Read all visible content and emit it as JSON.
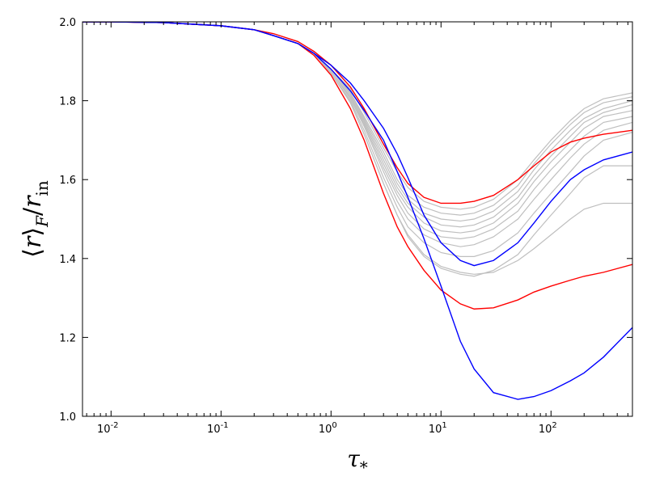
{
  "chart_data": {
    "type": "line",
    "title": "",
    "xlabel": "τ",
    "xlabel_sub": "*",
    "ylabel_parts": {
      "open": "⟨",
      "var": "r",
      "close": "⟩",
      "sub": "F",
      "slash": "/",
      "den": "r",
      "den_sub": "in"
    },
    "xscale": "log",
    "xlim": [
      0.0055,
      550
    ],
    "ylim": [
      1.0,
      2.0
    ],
    "grid": false,
    "legend": "none",
    "x_ticks": [
      {
        "value": 0.01,
        "base": "10",
        "exp": "-2"
      },
      {
        "value": 0.1,
        "base": "10",
        "exp": "-1"
      },
      {
        "value": 1,
        "base": "10",
        "exp": "0"
      },
      {
        "value": 10,
        "base": "10",
        "exp": "1"
      },
      {
        "value": 100,
        "base": "10",
        "exp": "2"
      }
    ],
    "y_ticks": [
      {
        "value": 1.0,
        "label": "1.0"
      },
      {
        "value": 1.2,
        "label": "1.2"
      },
      {
        "value": 1.4,
        "label": "1.4"
      },
      {
        "value": 1.6,
        "label": "1.6"
      },
      {
        "value": 1.8,
        "label": "1.8"
      },
      {
        "value": 2.0,
        "label": "2.0"
      }
    ],
    "colors": {
      "gray": "#bfbfbf",
      "red": "#ff0000",
      "blue": "#0000ff"
    },
    "x": [
      0.0055,
      0.01,
      0.03,
      0.1,
      0.2,
      0.3,
      0.5,
      0.7,
      1.0,
      1.5,
      2.0,
      3.0,
      4.0,
      5.0,
      7.0,
      10,
      15,
      20,
      30,
      50,
      70,
      100,
      150,
      200,
      300,
      550
    ],
    "series": [
      {
        "color_key": "gray",
        "values": [
          2.0,
          2.0,
          1.998,
          1.99,
          1.98,
          1.965,
          1.945,
          1.92,
          1.88,
          1.83,
          1.77,
          1.68,
          1.62,
          1.58,
          1.545,
          1.53,
          1.525,
          1.53,
          1.55,
          1.6,
          1.65,
          1.7,
          1.75,
          1.78,
          1.805,
          1.82
        ]
      },
      {
        "color_key": "gray",
        "values": [
          2.0,
          2.0,
          1.998,
          1.99,
          1.98,
          1.965,
          1.945,
          1.92,
          1.88,
          1.82,
          1.76,
          1.67,
          1.6,
          1.56,
          1.53,
          1.515,
          1.51,
          1.515,
          1.535,
          1.585,
          1.64,
          1.69,
          1.74,
          1.77,
          1.795,
          1.81
        ]
      },
      {
        "color_key": "gray",
        "values": [
          2.0,
          2.0,
          1.998,
          1.99,
          1.98,
          1.965,
          1.945,
          1.92,
          1.88,
          1.82,
          1.755,
          1.66,
          1.59,
          1.55,
          1.515,
          1.5,
          1.495,
          1.5,
          1.52,
          1.57,
          1.625,
          1.675,
          1.725,
          1.755,
          1.78,
          1.8
        ]
      },
      {
        "color_key": "gray",
        "values": [
          2.0,
          2.0,
          1.998,
          1.99,
          1.98,
          1.965,
          1.945,
          1.92,
          1.88,
          1.815,
          1.75,
          1.65,
          1.58,
          1.54,
          1.505,
          1.485,
          1.48,
          1.485,
          1.505,
          1.555,
          1.61,
          1.66,
          1.71,
          1.745,
          1.77,
          1.79
        ]
      },
      {
        "color_key": "gray",
        "values": [
          2.0,
          2.0,
          1.998,
          1.99,
          1.98,
          1.965,
          1.945,
          1.92,
          1.875,
          1.81,
          1.745,
          1.64,
          1.57,
          1.53,
          1.49,
          1.47,
          1.465,
          1.47,
          1.49,
          1.54,
          1.595,
          1.645,
          1.695,
          1.73,
          1.76,
          1.775
        ]
      },
      {
        "color_key": "gray",
        "values": [
          2.0,
          2.0,
          1.998,
          1.99,
          1.98,
          1.965,
          1.945,
          1.92,
          1.875,
          1.81,
          1.74,
          1.63,
          1.56,
          1.515,
          1.475,
          1.455,
          1.45,
          1.455,
          1.475,
          1.52,
          1.575,
          1.625,
          1.675,
          1.71,
          1.745,
          1.76
        ]
      },
      {
        "color_key": "gray",
        "values": [
          2.0,
          2.0,
          1.998,
          1.99,
          1.98,
          1.965,
          1.945,
          1.92,
          1.875,
          1.805,
          1.735,
          1.62,
          1.545,
          1.5,
          1.46,
          1.44,
          1.43,
          1.435,
          1.455,
          1.5,
          1.55,
          1.6,
          1.655,
          1.69,
          1.725,
          1.745
        ]
      },
      {
        "color_key": "gray",
        "values": [
          2.0,
          2.0,
          1.998,
          1.99,
          1.98,
          1.965,
          1.945,
          1.92,
          1.87,
          1.8,
          1.725,
          1.605,
          1.53,
          1.48,
          1.44,
          1.415,
          1.405,
          1.405,
          1.42,
          1.465,
          1.515,
          1.565,
          1.62,
          1.66,
          1.7,
          1.72
        ]
      },
      {
        "color_key": "gray",
        "values": [
          2.0,
          2.0,
          1.998,
          1.99,
          1.98,
          1.965,
          1.945,
          1.92,
          1.87,
          1.795,
          1.715,
          1.59,
          1.51,
          1.455,
          1.405,
          1.375,
          1.36,
          1.355,
          1.37,
          1.41,
          1.46,
          1.51,
          1.565,
          1.605,
          1.635,
          1.635
        ]
      },
      {
        "color_key": "gray",
        "values": [
          2.0,
          2.0,
          1.998,
          1.99,
          1.98,
          1.965,
          1.945,
          1.92,
          1.87,
          1.795,
          1.715,
          1.59,
          1.51,
          1.46,
          1.41,
          1.38,
          1.365,
          1.36,
          1.365,
          1.395,
          1.425,
          1.46,
          1.5,
          1.525,
          1.54,
          1.54
        ]
      },
      {
        "color_key": "red",
        "values": [
          2.0,
          2.0,
          1.998,
          1.99,
          1.98,
          1.97,
          1.95,
          1.925,
          1.89,
          1.835,
          1.78,
          1.69,
          1.63,
          1.59,
          1.555,
          1.54,
          1.54,
          1.545,
          1.56,
          1.6,
          1.635,
          1.67,
          1.695,
          1.705,
          1.715,
          1.725
        ]
      },
      {
        "color_key": "red",
        "values": [
          2.0,
          2.0,
          1.998,
          1.99,
          1.98,
          1.965,
          1.945,
          1.915,
          1.865,
          1.78,
          1.7,
          1.565,
          1.48,
          1.43,
          1.37,
          1.32,
          1.285,
          1.272,
          1.275,
          1.295,
          1.315,
          1.33,
          1.345,
          1.355,
          1.365,
          1.385
        ]
      },
      {
        "color_key": "blue",
        "values": [
          2.0,
          2.0,
          1.998,
          1.99,
          1.98,
          1.965,
          1.945,
          1.92,
          1.89,
          1.845,
          1.8,
          1.73,
          1.665,
          1.605,
          1.51,
          1.44,
          1.395,
          1.382,
          1.395,
          1.44,
          1.49,
          1.545,
          1.6,
          1.625,
          1.65,
          1.67
        ]
      },
      {
        "color_key": "blue",
        "values": [
          2.0,
          2.0,
          1.998,
          1.99,
          1.98,
          1.965,
          1.945,
          1.92,
          1.88,
          1.825,
          1.775,
          1.7,
          1.62,
          1.555,
          1.45,
          1.33,
          1.19,
          1.12,
          1.06,
          1.043,
          1.05,
          1.065,
          1.09,
          1.11,
          1.15,
          1.225
        ]
      }
    ]
  }
}
